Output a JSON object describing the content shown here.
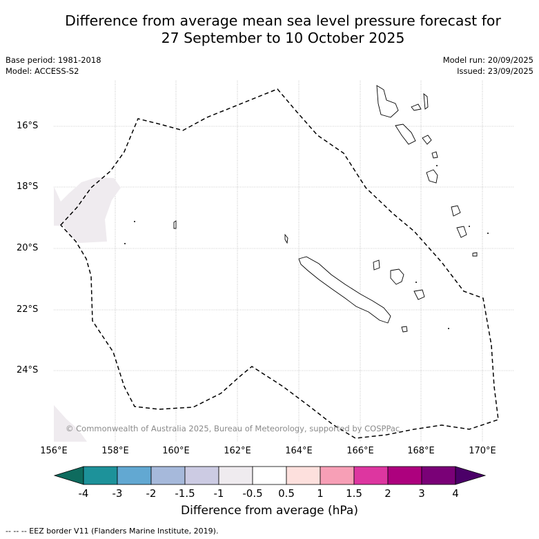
{
  "title": {
    "line1": "Difference from average mean sea level pressure forecast for",
    "line2": "27 September to 10 October 2025"
  },
  "info": {
    "base_period": "Base period: 1981-2018",
    "model": "Model: ACCESS-S2",
    "model_run": "Model run: 20/09/2025",
    "issued": "Issued: 23/09/2025"
  },
  "axes": {
    "lat_labels": [
      "16°S",
      "18°S",
      "20°S",
      "22°S",
      "24°S"
    ],
    "lon_labels": [
      "156°E",
      "158°E",
      "160°E",
      "162°E",
      "164°E",
      "166°E",
      "168°E",
      "170°E"
    ]
  },
  "copyright": "© Commonwealth of Australia 2025, Bureau of Meteorology, supported by COSPPac",
  "colorbar": {
    "title": "Difference from average (hPa)",
    "ticks": [
      "-4",
      "-3",
      "-2",
      "-1.5",
      "-1",
      "-0.5",
      "0.5",
      "1",
      "1.5",
      "2",
      "3",
      "4"
    ],
    "colors": {
      "under": "#0e6b5e",
      "bins": [
        "#1d929a",
        "#62a8d2",
        "#a6b9db",
        "#cccbe3",
        "#efebef",
        "#ffffff",
        "#fde0dd",
        "#f79fb6",
        "#dd36a0",
        "#ad017e",
        "#7a0177"
      ],
      "over": "#4b0068"
    }
  },
  "footer": "--  --  -- EEZ border V11 (Flanders Marine Institute, 2019)."
}
